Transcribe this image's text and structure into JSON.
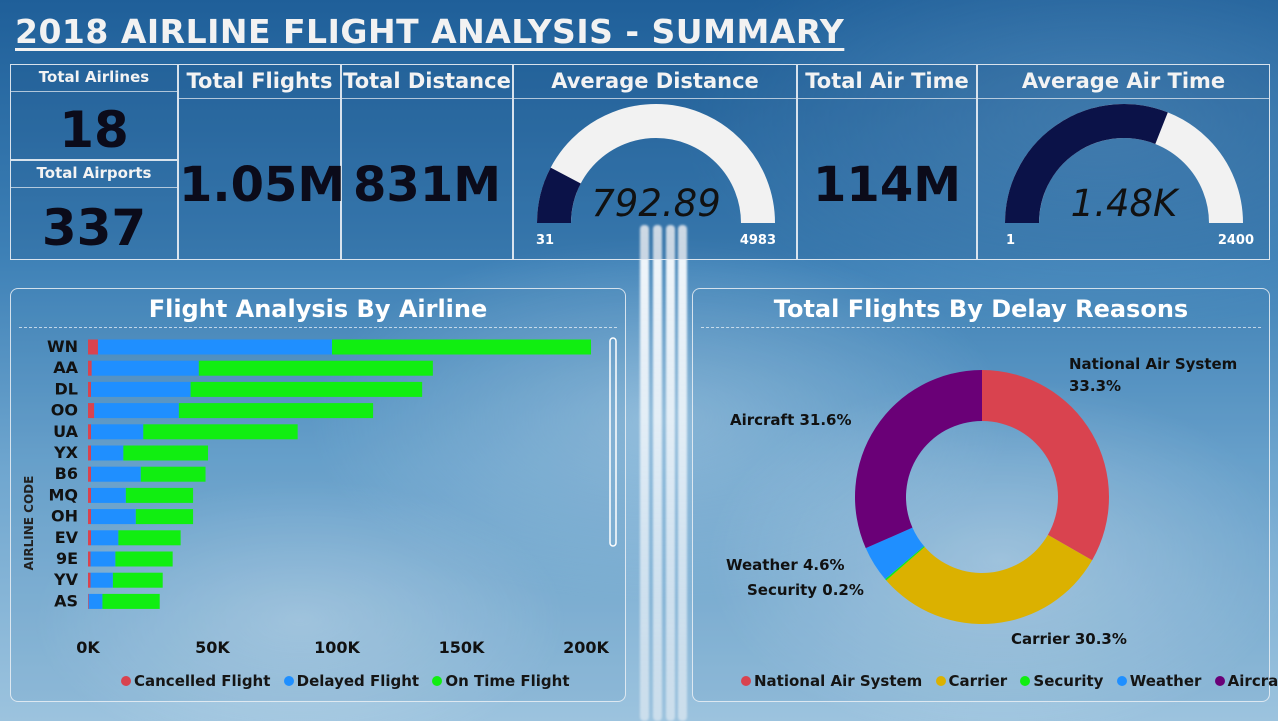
{
  "header": {
    "title": "2018 AIRLINE FLIGHT ANALYSIS - SUMMARY"
  },
  "kpis": {
    "total_airlines": {
      "label": "Total Airlines",
      "value": "18"
    },
    "total_airports": {
      "label": "Total Airports",
      "value": "337"
    },
    "total_flights": {
      "label": "Total Flights",
      "value": "1.05M"
    },
    "total_distance": {
      "label": "Total Distance",
      "value": "831M"
    },
    "average_distance": {
      "label": "Average Distance",
      "value": "792.89",
      "min": "31",
      "max": "4983",
      "fill": 0.154
    },
    "total_air_time": {
      "label": "Total Air Time",
      "value": "114M"
    },
    "average_air_time": {
      "label": "Average Air Time",
      "value": "1.48K",
      "min": "1",
      "max": "2400",
      "fill": 0.62
    }
  },
  "airline_panel": {
    "title": "Flight Analysis By Airline",
    "axis_label": "AIRLINE CODE"
  },
  "delay_panel": {
    "title": "Total Flights By Delay Reasons"
  },
  "colors": {
    "cancelled": "#d9434f",
    "delayed": "#1f8fff",
    "on_time": "#11ee11",
    "national_air_system": "#d9434f",
    "carrier": "#dbb100",
    "security": "#11ee11",
    "weather": "#1f8fff",
    "aircraft": "#6a0077",
    "gauge_fill": "#0b1248",
    "gauge_empty": "#f2f2f2"
  },
  "chart_data": [
    {
      "type": "bar",
      "orientation": "horizontal",
      "stacked": true,
      "title": "Flight Analysis By Airline",
      "ylabel": "AIRLINE CODE",
      "categories": [
        "WN",
        "AA",
        "DL",
        "OO",
        "UA",
        "YX",
        "B6",
        "MQ",
        "OH",
        "EV",
        "9E",
        "YV",
        "AS"
      ],
      "series": [
        {
          "name": "Cancelled Flight",
          "color": "#d9434f",
          "values": [
            4000,
            1500,
            1200,
            2500,
            1200,
            1200,
            1200,
            1200,
            1200,
            1200,
            1000,
            1000,
            300
          ]
        },
        {
          "name": "Delayed Flight",
          "color": "#1f8fff",
          "values": [
            94000,
            43000,
            40000,
            34000,
            21000,
            13000,
            20000,
            14000,
            18000,
            11000,
            10000,
            9000,
            5500
          ]
        },
        {
          "name": "On Time Flight",
          "color": "#11ee11",
          "values": [
            104000,
            94000,
            93000,
            78000,
            62000,
            34000,
            26000,
            27000,
            23000,
            25000,
            23000,
            20000,
            23000
          ]
        }
      ],
      "xlim": [
        0,
        200000
      ],
      "x_ticks": [
        "0K",
        "50K",
        "100K",
        "150K",
        "200K"
      ],
      "legend": "bottom"
    },
    {
      "type": "pie",
      "donut": true,
      "title": "Total Flights By Delay Reasons",
      "slices": [
        {
          "name": "National Air System",
          "percent": 33.3,
          "label": "National Air System 33.3%",
          "color": "#d9434f"
        },
        {
          "name": "Carrier",
          "percent": 30.3,
          "label": "Carrier 30.3%",
          "color": "#dbb100"
        },
        {
          "name": "Security",
          "percent": 0.2,
          "label": "Security 0.2%",
          "color": "#11ee11"
        },
        {
          "name": "Weather",
          "percent": 4.6,
          "label": "Weather 4.6%",
          "color": "#1f8fff"
        },
        {
          "name": "Aircraft",
          "percent": 31.6,
          "label": "Aircraft 31.6%",
          "color": "#6a0077"
        }
      ],
      "legend": "bottom"
    }
  ]
}
